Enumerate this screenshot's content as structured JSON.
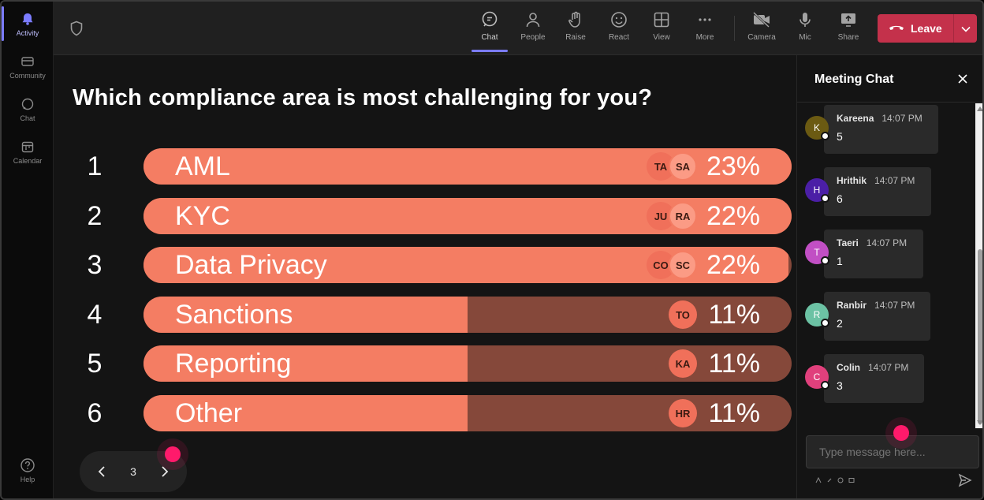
{
  "rail": {
    "items": [
      {
        "label": "Activity",
        "icon": "bell-icon"
      },
      {
        "label": "Community",
        "icon": "community-icon"
      },
      {
        "label": "Chat",
        "icon": "chat-icon"
      },
      {
        "label": "Calendar",
        "icon": "calendar-icon"
      }
    ],
    "help_label": "Help"
  },
  "toolbar": {
    "chat": "Chat",
    "people": "People",
    "raise": "Raise",
    "react": "React",
    "view": "View",
    "more": "More",
    "camera": "Camera",
    "mic": "Mic",
    "share": "Share",
    "leave": "Leave"
  },
  "poll": {
    "question": "Which compliance area is most challenging for you?",
    "page": "3",
    "options": [
      {
        "num": "1",
        "label": "AML",
        "percent": "23%",
        "fill": 1.0,
        "avatars": [
          "TA",
          "SA"
        ]
      },
      {
        "num": "2",
        "label": "KYC",
        "percent": "22%",
        "fill": 1.0,
        "avatars": [
          "JU",
          "RA"
        ]
      },
      {
        "num": "3",
        "label": "Data Privacy",
        "percent": "22%",
        "fill": 0.995,
        "avatars": [
          "CO",
          "SC"
        ]
      },
      {
        "num": "4",
        "label": "Sanctions",
        "percent": "11%",
        "fill": 0.5,
        "avatars": [
          "TO"
        ]
      },
      {
        "num": "5",
        "label": "Reporting",
        "percent": "11%",
        "fill": 0.5,
        "avatars": [
          "KA"
        ]
      },
      {
        "num": "6",
        "label": "Other",
        "percent": "11%",
        "fill": 0.5,
        "avatars": [
          "HR"
        ]
      }
    ]
  },
  "chat": {
    "title": "Meeting Chat",
    "placeholder": "Type message here...",
    "messages": [
      {
        "initial": "K",
        "author": "Kareena",
        "time": "14:07 PM",
        "text": "5",
        "color": "#6b5a12"
      },
      {
        "initial": "H",
        "author": "Hrithik",
        "time": "14:07 PM",
        "text": "6",
        "color": "#4b1fa6"
      },
      {
        "initial": "T",
        "author": "Taeri",
        "time": "14:07 PM",
        "text": "1",
        "color": "#c14fc4"
      },
      {
        "initial": "R",
        "author": "Ranbir",
        "time": "14:07 PM",
        "text": "2",
        "color": "#6cc2a4"
      },
      {
        "initial": "C",
        "author": "Colin",
        "time": "14:07 PM",
        "text": "3",
        "color": "#e0407c"
      }
    ]
  },
  "colors": {
    "bar_fill": "#f47d63",
    "bar_track": "#85483a",
    "leave": "#c4314b",
    "accent": "#7b7cff",
    "cursor": "#ff1a6b"
  }
}
